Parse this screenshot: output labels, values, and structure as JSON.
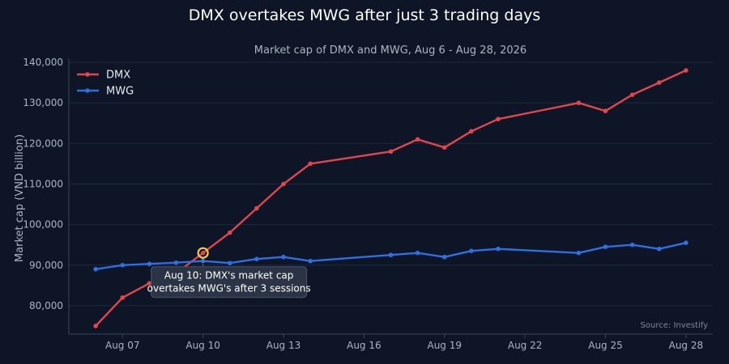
{
  "chart_data": {
    "type": "line",
    "title": "DMX overtakes MWG after just 3 trading days",
    "subtitle": "Market cap of DMX and MWG, Aug 6 - Aug 28, 2026",
    "ylabel": "Market cap (VND billion)",
    "ylim": [
      73000,
      141000
    ],
    "y_ticks": [
      80000,
      90000,
      100000,
      110000,
      120000,
      130000,
      140000
    ],
    "y_tick_labels": [
      "80,000",
      "90,000",
      "100,000",
      "110,000",
      "120,000",
      "130,000",
      "140,000"
    ],
    "x_tick_labels": [
      "Aug 07",
      "Aug 10",
      "Aug 13",
      "Aug 16",
      "Aug 19",
      "Aug 22",
      "Aug 25",
      "Aug 28"
    ],
    "x_tick_days": [
      7,
      10,
      13,
      16,
      19,
      22,
      25,
      28
    ],
    "xlim": [
      5,
      29
    ],
    "grid": true,
    "legend": "top-left",
    "series": [
      {
        "name": "DMX",
        "color": "#e0474c",
        "x": [
          6,
          7,
          8,
          9,
          10,
          11,
          12,
          13,
          14,
          17,
          18,
          19,
          20,
          21,
          24,
          25,
          26,
          27,
          28
        ],
        "values": [
          75000,
          82000,
          85500,
          88000,
          93000,
          98000,
          104000,
          110000,
          115000,
          118000,
          121000,
          119000,
          123000,
          126000,
          130000,
          128000,
          132000,
          135000,
          138000
        ]
      },
      {
        "name": "MWG",
        "color": "#2f6fe0",
        "x": [
          6,
          7,
          8,
          9,
          10,
          11,
          12,
          13,
          14,
          17,
          18,
          19,
          20,
          21,
          24,
          25,
          26,
          27,
          28
        ],
        "values": [
          89000,
          90000,
          90300,
          90600,
          91000,
          90500,
          91500,
          92000,
          91000,
          92500,
          93000,
          92000,
          93500,
          94000,
          93000,
          94500,
          95000,
          94000,
          95500
        ]
      }
    ],
    "annotation": {
      "x": 10,
      "y": 93000,
      "text_lines": [
        "Aug 10: DMX's market cap",
        "overtakes MWG's after 3 sessions"
      ],
      "marker_color": "#f2c94c"
    },
    "source": "Source: Investify"
  }
}
